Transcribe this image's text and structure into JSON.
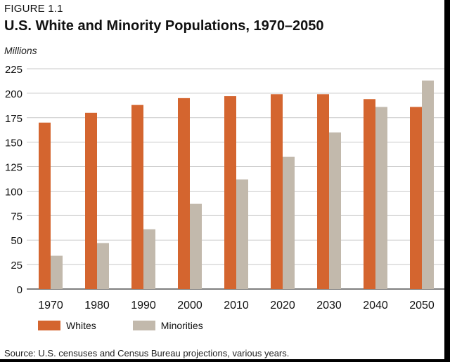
{
  "figure_label": "FIGURE 1.1",
  "chart_data": {
    "type": "bar",
    "title": "U.S. White and Minority Populations, 1970–2050",
    "ylabel": "Millions",
    "xlabel": "",
    "categories": [
      "1970",
      "1980",
      "1990",
      "2000",
      "2010",
      "2020",
      "2030",
      "2040",
      "2050"
    ],
    "series": [
      {
        "name": "Whites",
        "color": "#d4652f",
        "values": [
          170,
          180,
          188,
          195,
          197,
          199,
          199,
          194,
          186
        ]
      },
      {
        "name": "Minorities",
        "color": "#c2b9ac",
        "values": [
          34,
          47,
          61,
          87,
          112,
          135,
          160,
          186,
          213
        ]
      }
    ],
    "ylim": [
      0,
      225
    ],
    "yticks": [
      "0",
      "25",
      "50",
      "75",
      "100",
      "125",
      "150",
      "175",
      "200",
      "225"
    ],
    "grid": true,
    "legend_position": "bottom-left"
  },
  "source": "Source: U.S. censuses and Census Bureau projections, various years."
}
